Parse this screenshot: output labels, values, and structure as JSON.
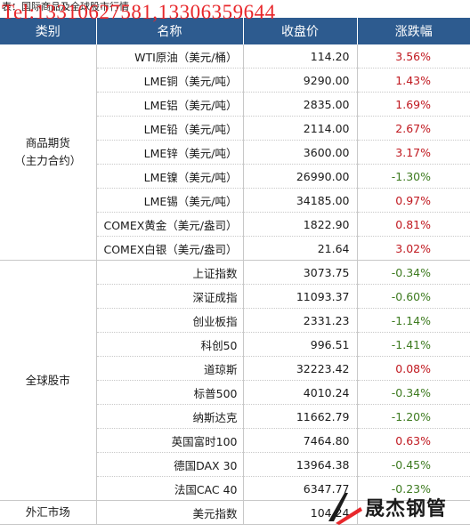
{
  "caption": "表：国际商品及全球股市行情",
  "overlay_text": "Tel:13310627581,13306359644",
  "headers": [
    "类别",
    "名称",
    "收盘价",
    "涨跌幅"
  ],
  "groups": [
    {
      "category": [
        "商品期货",
        "（主力合约）"
      ],
      "rows": [
        {
          "name": "WTI原油（美元/桶）",
          "price": "114.20",
          "change": "3.56%",
          "dir": "up"
        },
        {
          "name": "LME铜（美元/吨）",
          "price": "9290.00",
          "change": "1.43%",
          "dir": "up"
        },
        {
          "name": "LME铝（美元/吨）",
          "price": "2835.00",
          "change": "1.69%",
          "dir": "up"
        },
        {
          "name": "LME铅（美元/吨）",
          "price": "2114.00",
          "change": "2.67%",
          "dir": "up"
        },
        {
          "name": "LME锌（美元/吨）",
          "price": "3600.00",
          "change": "3.17%",
          "dir": "up"
        },
        {
          "name": "LME镍（美元/吨）",
          "price": "26990.00",
          "change": "-1.30%",
          "dir": "down"
        },
        {
          "name": "LME锡（美元/吨）",
          "price": "34185.00",
          "change": "0.97%",
          "dir": "up"
        },
        {
          "name": "COMEX黄金（美元/盎司）",
          "price": "1822.90",
          "change": "0.81%",
          "dir": "up"
        },
        {
          "name": "COMEX白银（美元/盎司）",
          "price": "21.64",
          "change": "3.02%",
          "dir": "up"
        }
      ]
    },
    {
      "category": [
        "全球股市"
      ],
      "rows": [
        {
          "name": "上证指数",
          "price": "3073.75",
          "change": "-0.34%",
          "dir": "down"
        },
        {
          "name": "深证成指",
          "price": "11093.37",
          "change": "-0.60%",
          "dir": "down"
        },
        {
          "name": "创业板指",
          "price": "2331.23",
          "change": "-1.14%",
          "dir": "down"
        },
        {
          "name": "科创50",
          "price": "996.51",
          "change": "-1.41%",
          "dir": "down"
        },
        {
          "name": "道琼斯",
          "price": "32223.42",
          "change": "0.08%",
          "dir": "up"
        },
        {
          "name": "标普500",
          "price": "4010.24",
          "change": "-0.34%",
          "dir": "down"
        },
        {
          "name": "纳斯达克",
          "price": "11662.79",
          "change": "-1.20%",
          "dir": "down"
        },
        {
          "name": "英国富时100",
          "price": "7464.80",
          "change": "0.63%",
          "dir": "up"
        },
        {
          "name": "德国DAX 30",
          "price": "13964.38",
          "change": "-0.45%",
          "dir": "down"
        },
        {
          "name": "法国CAC 40",
          "price": "6347.77",
          "change": "-0.23%",
          "dir": "down"
        }
      ]
    },
    {
      "category": [
        "外汇市场"
      ],
      "rows": [
        {
          "name": "美元指数",
          "price": "104.24",
          "change": "",
          "dir": "none"
        }
      ]
    }
  ],
  "logo": {
    "text": "晟杰钢管",
    "accent_color": "#e8272b"
  },
  "colors": {
    "header_bg": "#2d5b8f",
    "up": "#c0181f",
    "down": "#3d7a1f"
  }
}
